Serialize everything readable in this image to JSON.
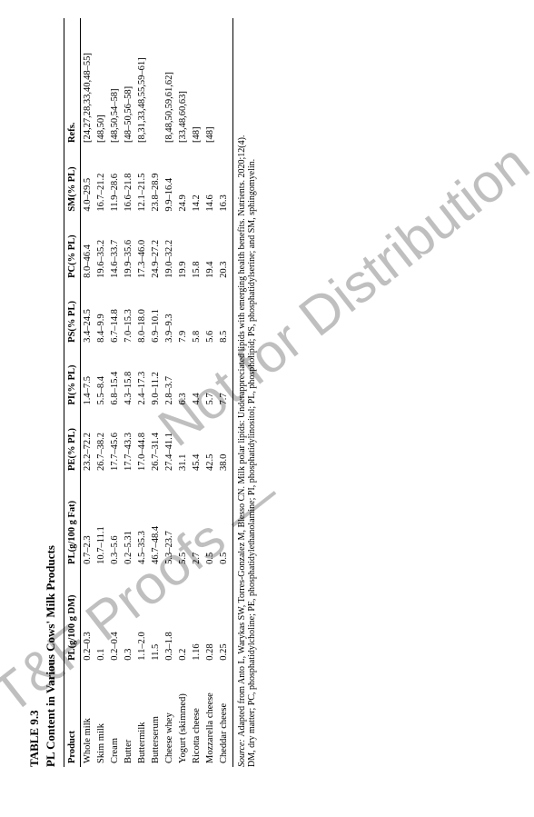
{
  "table": {
    "label": "TABLE 9.3",
    "title": "PL Content in Various Cows' Milk Products",
    "columns": [
      "Product",
      "PL(g/100 g DM)",
      "PL(g/100 g Fat)",
      "PE(% PL)",
      "PI(% PL)",
      "PS(% PL)",
      "PC(% PL)",
      "SM(% PL)",
      "Refs."
    ],
    "rows": [
      [
        "Whole milk",
        "0.2–0.3",
        "0.7–2.3",
        "23.2–72.2",
        "1.4–7.5",
        "3.4–24.5",
        "8.0–46.4",
        "4.0–29.5",
        "[24,27,28,33,40,48–55]"
      ],
      [
        "Skim milk",
        "0.1",
        "10.7–11.1",
        "26.7–38.2",
        "5.5–8.4",
        "8.4–9.9",
        "19.6–35.2",
        "16.7–21.2",
        "[48,50]"
      ],
      [
        "Cream",
        "0.2–0.4",
        "0.3–5.6",
        "17.7–45.6",
        "6.8–15.4",
        "6.7–14.8",
        "14.6–33.7",
        "11.9–28.6",
        "[48,50,54–58]"
      ],
      [
        "Butter",
        "0.3",
        "0.2–5.31",
        "17.7–43.3",
        "4.3–15.8",
        "7.0–15.3",
        "19.9–35.6",
        "16.6–21.8",
        "[48–50,56–58]"
      ],
      [
        "Buttermilk",
        "1.1–2.0",
        "4.5–35.3",
        "17.0–44.8",
        "2.4–17.3",
        "8.0–18.0",
        "17.3–46.0",
        "12.1–21.5",
        "[8,31,33,48,55,59–61]"
      ],
      [
        "Butterserum",
        "11.5",
        "46.7–48.4",
        "26.7–31.4",
        "9.0–11.2",
        "6.9–10.1",
        "24.9–27.2",
        "23.8–28.9",
        ""
      ],
      [
        "Cheese whey",
        "0.3–1.8",
        "5.3–23.7",
        "27.4–41.1",
        "2.8–3.7",
        "3.9–9.3",
        "19.0–32.2",
        "9.9–16.4",
        "[8,48,50,59,61,62]"
      ],
      [
        "Yogurt (skimmed)",
        "0.2",
        "5.5",
        "31.1",
        "6.3",
        "7.9",
        "19.9",
        "24.9",
        "[33,48,60,63]"
      ],
      [
        "Ricotta cheese",
        "1.16",
        "2.7",
        "45.4",
        "4.4",
        "5.8",
        "15.8",
        "14.2",
        "[48]"
      ],
      [
        "Mozzarella cheese",
        "0.28",
        "0.5",
        "42.5",
        "5.7",
        "5.6",
        "19.4",
        "14.6",
        "[48]"
      ],
      [
        "Cheddar cheese",
        "0.25",
        "0.5",
        "38.0",
        "7.7",
        "8.5",
        "20.3",
        "16.3",
        ""
      ]
    ],
    "source_label": "Source:",
    "source_text1": "Adapted from Anto L, Warykas SW, Torres-Gonzalez M, Blesso CN. Milk polar lipids: Underappreciated lipids with emerging health benefits. Nutrients. 2020;12(4).",
    "source_text2": "DM, dry matter; PC, phosphatidylcholine; PE, phosphatidylethanolamine; PI, phosphatidylinositol; PL, phospholipid; PS, phosphatidylserine; and SM, sphingomyelin."
  },
  "watermark": {
    "line1": "T&F Proofs —",
    "line2": "Not for Distribution"
  }
}
